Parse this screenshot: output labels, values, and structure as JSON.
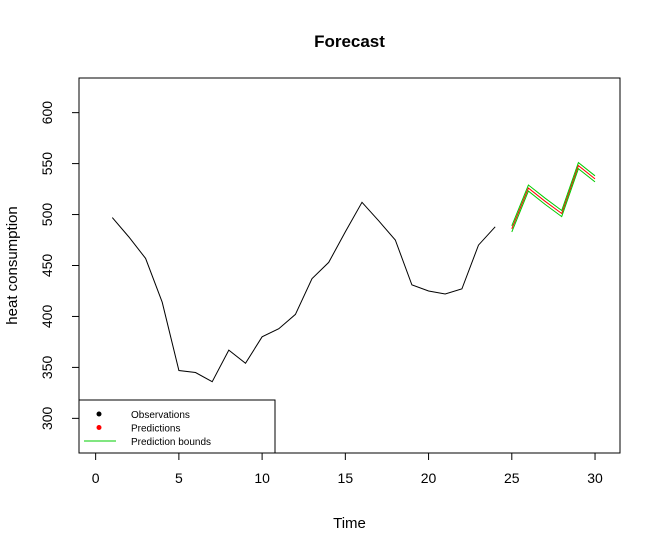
{
  "chart_data": {
    "type": "line",
    "title": "Forecast",
    "xlabel": "Time",
    "ylabel": "heat consumption",
    "xlim": [
      -1,
      31.5
    ],
    "ylim": [
      266,
      634
    ],
    "x_ticks": [
      0,
      5,
      10,
      15,
      20,
      25,
      30
    ],
    "y_ticks": [
      300,
      350,
      400,
      450,
      500,
      550,
      600
    ],
    "grid": false,
    "legend_position": "bottom-left",
    "legend": [
      {
        "label": "Observations",
        "symbol": "dot",
        "color": "#000000"
      },
      {
        "label": "Predictions",
        "symbol": "dot",
        "color": "#ff0000"
      },
      {
        "label": "Prediction bounds",
        "symbol": "line",
        "color": "#00cc00"
      }
    ],
    "series": [
      {
        "role": "observations",
        "color": "#000000",
        "x": [
          1,
          2,
          3,
          4,
          5,
          6,
          7,
          8,
          9,
          10,
          11,
          12,
          13,
          14,
          15,
          16,
          17,
          18,
          19,
          20,
          21,
          22,
          23,
          24
        ],
        "y": [
          497,
          478,
          457,
          414,
          347,
          345,
          336,
          367,
          354,
          380,
          388,
          402,
          437,
          453,
          483,
          512,
          494,
          475,
          431,
          425,
          422,
          427,
          470,
          488
        ]
      },
      {
        "role": "predictions",
        "color": "#ff0000",
        "x": [
          25,
          26,
          27,
          28,
          29,
          30
        ],
        "y": [
          486,
          526,
          513,
          501,
          548,
          535
        ]
      },
      {
        "role": "prediction_upper_bound",
        "color": "#00cc00",
        "x": [
          25,
          26,
          27,
          28,
          29,
          30
        ],
        "y": [
          489,
          529,
          516,
          504,
          551,
          538
        ]
      },
      {
        "role": "prediction_lower_bound",
        "color": "#00cc00",
        "x": [
          25,
          26,
          27,
          28,
          29,
          30
        ],
        "y": [
          483,
          523,
          510,
          498,
          545,
          532
        ]
      }
    ]
  }
}
